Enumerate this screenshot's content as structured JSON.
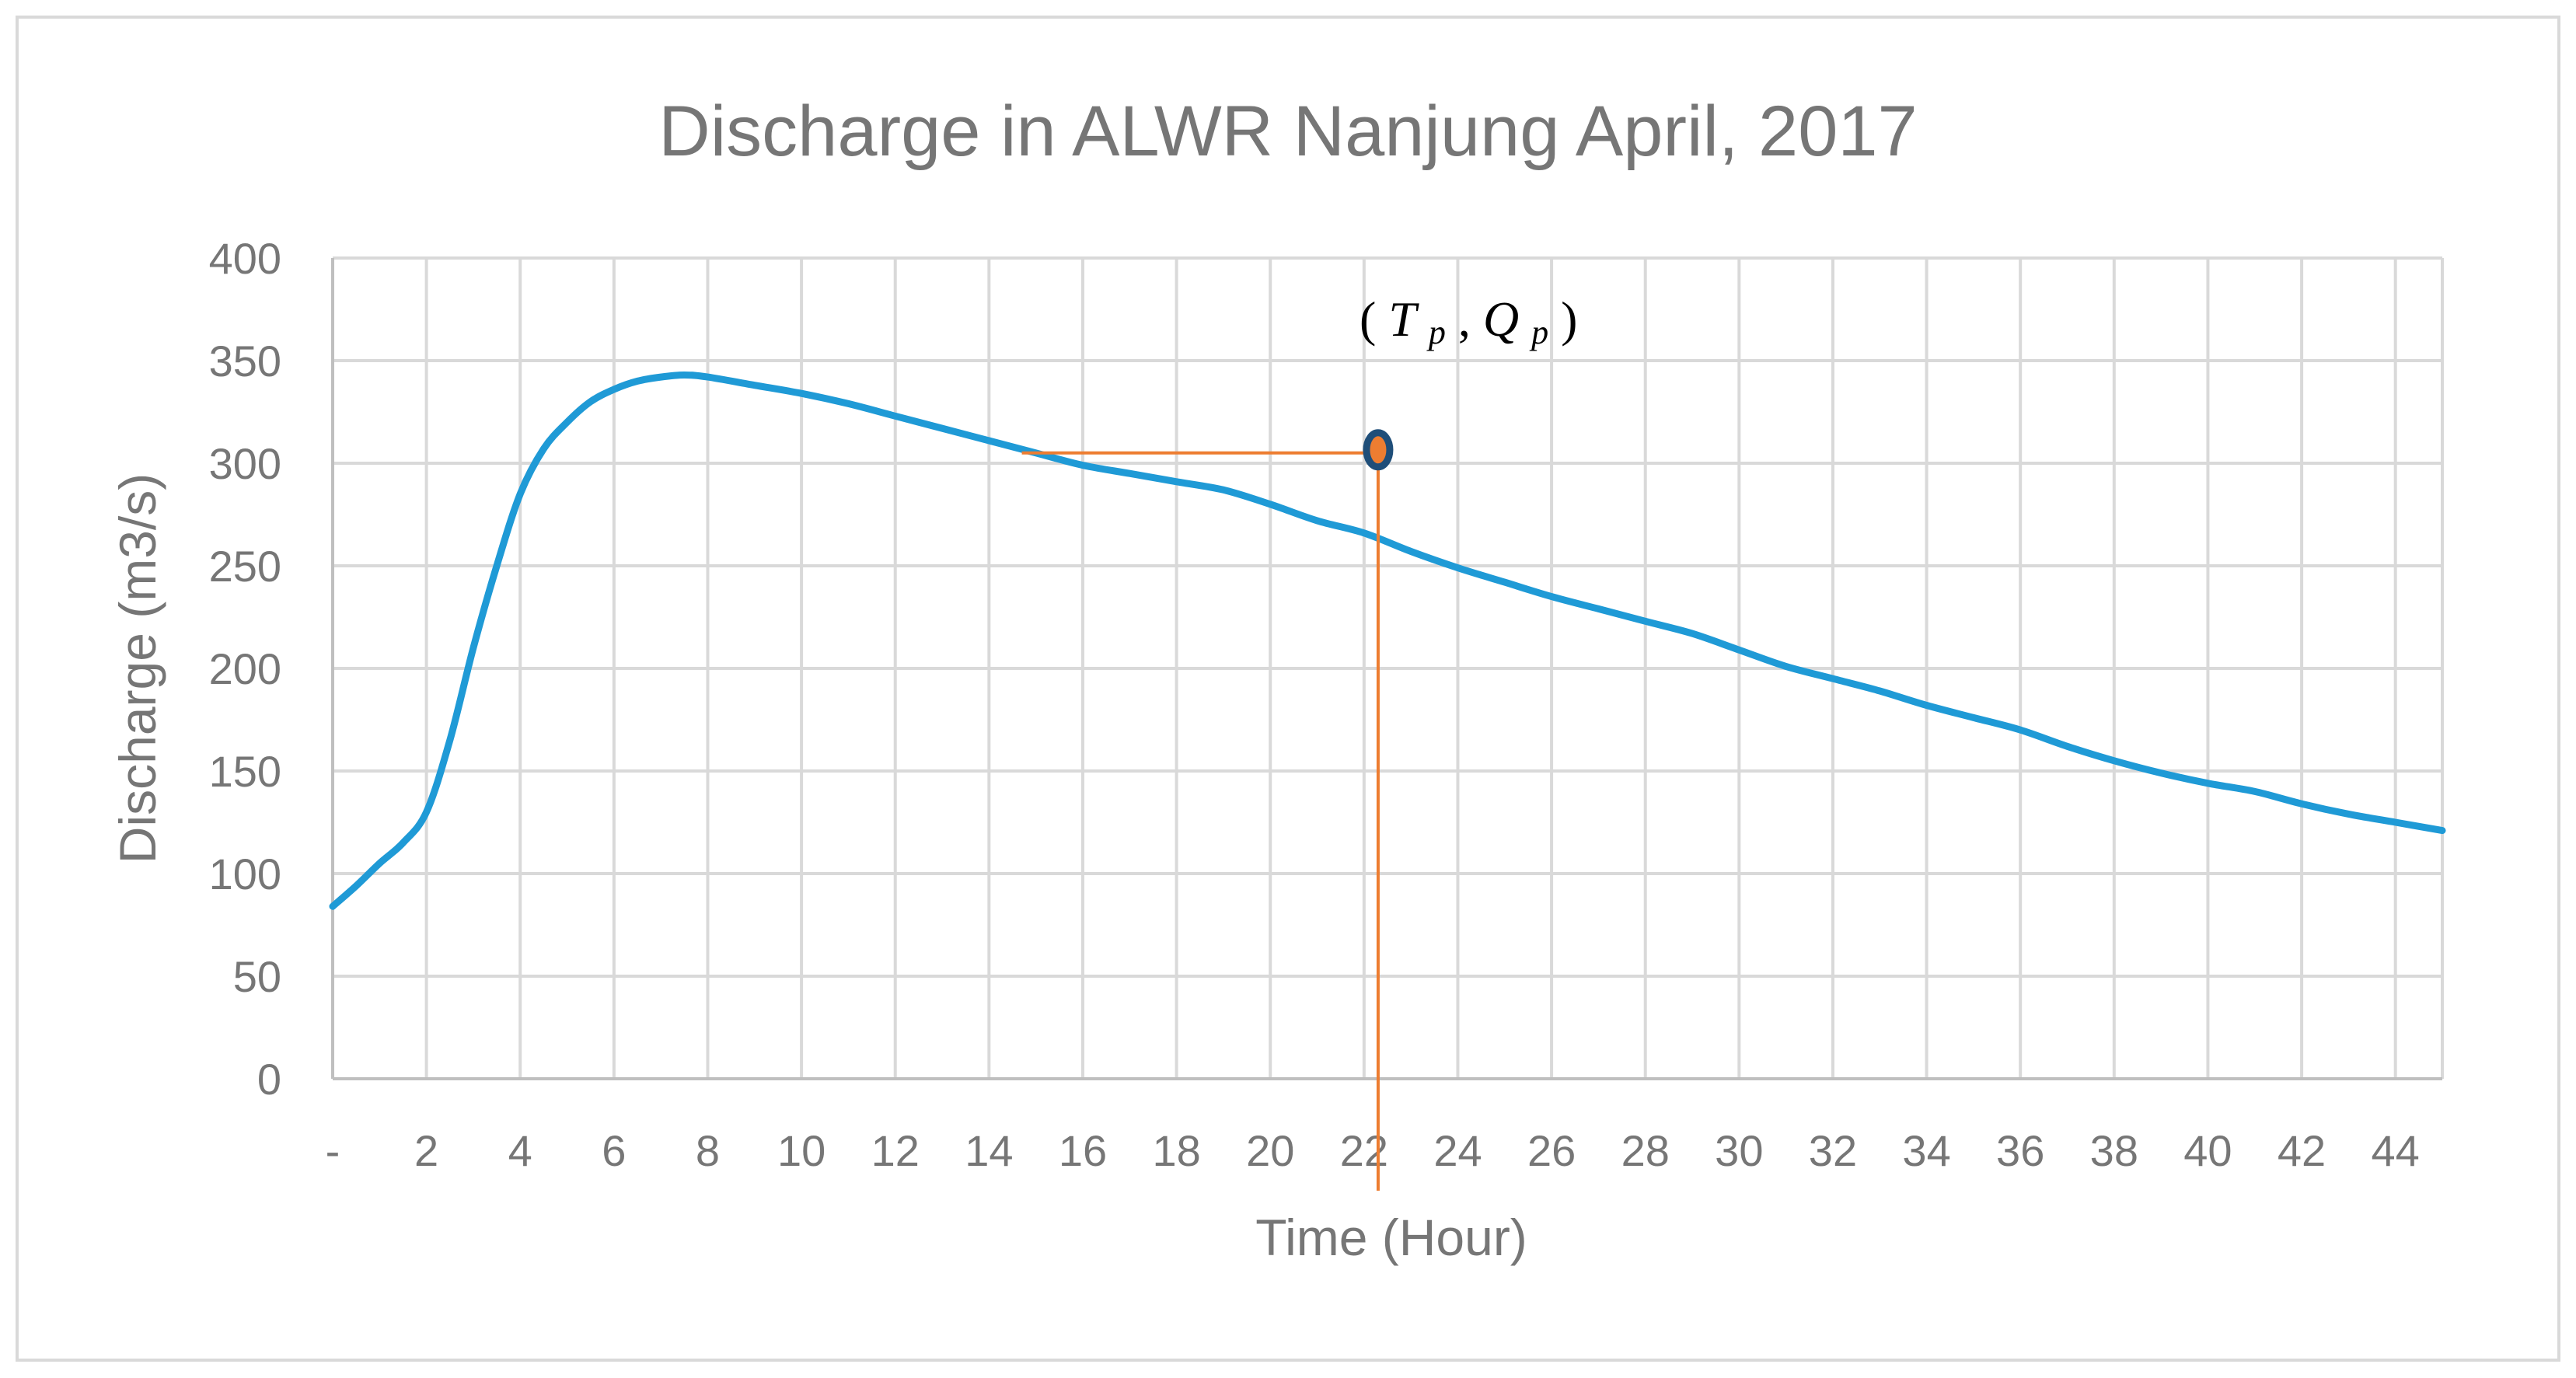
{
  "chart_data": {
    "type": "line",
    "title": "Discharge in ALWR Nanjung April, 2017",
    "xlabel": "Time (Hour)",
    "ylabel": "Discharge (m3/s)",
    "xlim": [
      0,
      45
    ],
    "ylim": [
      0,
      400
    ],
    "x_tick_labels": [
      "-",
      "2",
      "4",
      "6",
      "8",
      "10",
      "12",
      "14",
      "16",
      "18",
      "20",
      "22",
      "24",
      "26",
      "28",
      "30",
      "32",
      "34",
      "36",
      "38",
      "40",
      "42",
      "44"
    ],
    "y_tick_labels": [
      "0",
      "50",
      "100",
      "150",
      "200",
      "250",
      "300",
      "350",
      "400"
    ],
    "grid": true,
    "series": [
      {
        "color": "#1f9ad6",
        "x": [
          0,
          0.5,
          1,
          1.5,
          2,
          2.5,
          3,
          3.5,
          4,
          4.5,
          5,
          5.5,
          6,
          6.5,
          7,
          7.5,
          8,
          9,
          10,
          11,
          12,
          13,
          14,
          15,
          16,
          17,
          18,
          19,
          20,
          21,
          22,
          23,
          24,
          25,
          26,
          27,
          28,
          29,
          30,
          31,
          32,
          33,
          34,
          35,
          36,
          37,
          38,
          39,
          40,
          41,
          42,
          43,
          44,
          45
        ],
        "y": [
          84,
          94,
          105,
          115,
          130,
          165,
          210,
          250,
          285,
          307,
          320,
          330,
          336,
          340,
          342,
          343,
          342,
          338,
          334,
          329,
          323,
          317,
          311,
          305,
          299,
          295,
          291,
          287,
          280,
          272,
          266,
          257,
          249,
          242,
          235,
          229,
          223,
          217,
          209,
          201,
          195,
          189,
          182,
          176,
          170,
          162,
          155,
          149,
          144,
          140,
          134,
          129,
          125,
          121
        ]
      }
    ],
    "annotation": {
      "label_open": "(",
      "T": "T",
      "T_sub": "p",
      "comma": ", ",
      "Q": "Q",
      "Q_sub": "p",
      "label_close": ")",
      "x": 22.3,
      "y": 305,
      "hline_from_x": 14.7,
      "color": "#ed7d31",
      "marker_border": "#1f4e79"
    }
  }
}
